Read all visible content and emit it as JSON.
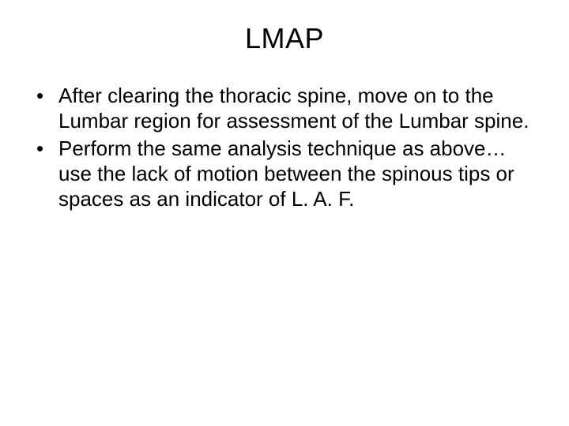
{
  "slide": {
    "title": "LMAP",
    "bullets": [
      "After clearing the thoracic spine, move on to the Lumbar region for assessment of the Lumbar spine.",
      "Perform the same analysis technique as above…use the lack of motion between the spinous tips or spaces as an indicator of  L. A. F."
    ]
  },
  "style": {
    "background_color": "#ffffff",
    "text_color": "#000000",
    "title_fontsize": 36,
    "body_fontsize": 26,
    "font_family": "Arial"
  }
}
